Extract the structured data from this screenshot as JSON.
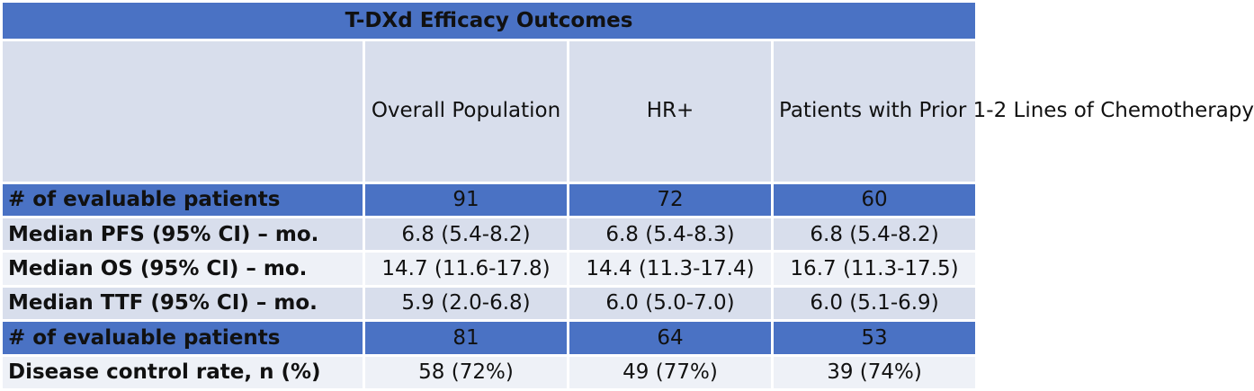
{
  "title": "T-DXd Efficacy Outcomes",
  "columns": [
    "Overall Population",
    "HR+",
    "Patients with Prior 1-2 Lines of Chemotherapy"
  ],
  "rows": [
    {
      "label": "# of evaluable patients",
      "values": [
        "91",
        "72",
        "60"
      ]
    },
    {
      "label": "Median PFS (95% CI) – mo.",
      "values": [
        "6.8 (5.4-8.2)",
        "6.8 (5.4-8.3)",
        "6.8 (5.4-8.2)"
      ]
    },
    {
      "label": "Median OS  (95% CI) – mo.",
      "values": [
        "14.7 (11.6-17.8)",
        "14.4 (11.3-17.4)",
        "16.7 (11.3-17.5)"
      ]
    },
    {
      "label": "Median TTF (95% CI) – mo.",
      "values": [
        "5.9 (2.0-6.8)",
        "6.0 (5.0-7.0)",
        "6.0 (5.1-6.9)"
      ]
    },
    {
      "label": "# of evaluable patients",
      "values": [
        "81",
        "64",
        "53"
      ]
    },
    {
      "label": "Disease control rate, n (%)",
      "values": [
        "58 (72%)",
        "49 (77%)",
        "39 (74%)"
      ]
    }
  ],
  "colors": {
    "header_band": "#4a72c4",
    "light_row": "#d8deec",
    "pale_row": "#eef1f7"
  }
}
